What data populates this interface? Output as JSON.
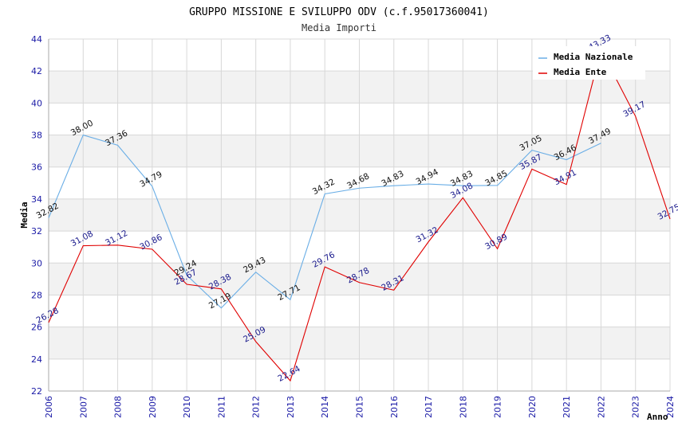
{
  "chart_data": {
    "type": "line",
    "title": "GRUPPO MISSIONE E SVILUPPO ODV (c.f.95017360041)",
    "subtitle": "Media Importi",
    "xlabel": "Anno",
    "ylabel": "Media",
    "ylim": [
      22,
      44
    ],
    "yticks": [
      "22",
      "24",
      "26",
      "28",
      "30",
      "32",
      "34",
      "36",
      "38",
      "40",
      "42",
      "44"
    ],
    "x": [
      "2006",
      "2007",
      "2008",
      "2009",
      "2010",
      "2011",
      "2012",
      "2013",
      "2014",
      "2015",
      "2016",
      "2017",
      "2018",
      "2019",
      "2020",
      "2021",
      "2022",
      "2023",
      "2024"
    ],
    "legend_position": "top-right",
    "series": [
      {
        "name": "Media Nazionale",
        "color": "#6aaee6",
        "values": [
          32.82,
          38.0,
          37.36,
          34.79,
          29.24,
          27.19,
          29.43,
          27.71,
          34.32,
          34.68,
          34.83,
          34.94,
          34.83,
          34.85,
          37.05,
          36.46,
          37.49,
          null,
          null
        ],
        "labels": [
          "32.82",
          "38.00",
          "37.36",
          "34.79",
          "29.24",
          "27.19",
          "29.43",
          "27.71",
          "34.32",
          "34.68",
          "34.83",
          "34.94",
          "34.83",
          "34.85",
          "37.05",
          "36.46",
          "37.49",
          null,
          null
        ]
      },
      {
        "name": "Media Ente",
        "color": "#e00000",
        "values": [
          26.28,
          31.08,
          31.12,
          30.86,
          28.67,
          28.38,
          25.09,
          22.64,
          29.76,
          28.78,
          28.31,
          31.32,
          34.08,
          30.89,
          35.87,
          34.91,
          43.33,
          39.17,
          32.75
        ],
        "labels": [
          "26.28",
          "31.08",
          "31.12",
          "30.86",
          "28.67",
          "28.38",
          "25.09",
          "22.64",
          "29.76",
          "28.78",
          "28.31",
          "31.32",
          "34.08",
          "30.89",
          "35.87",
          "34.91",
          "43.33",
          "39.17",
          "32.75"
        ]
      }
    ]
  },
  "colors": {
    "band": "#f2f2f2",
    "grid": "#d8d8d8",
    "axis": "#aaaaaa",
    "tick_text": "#1a1aa6"
  }
}
